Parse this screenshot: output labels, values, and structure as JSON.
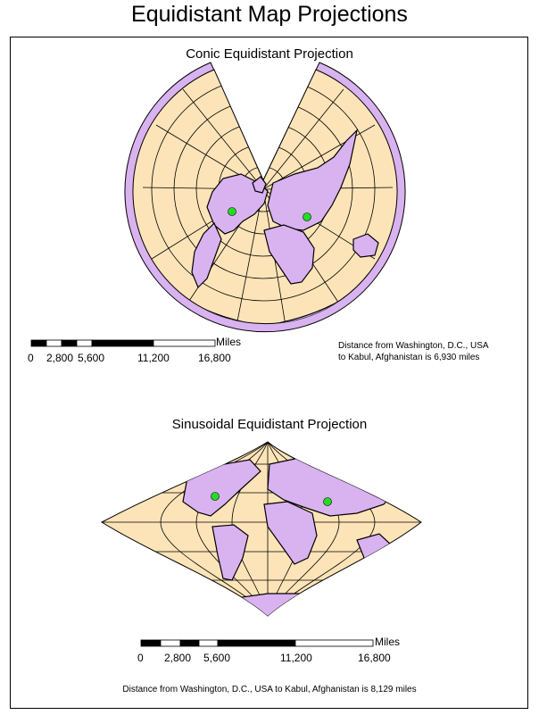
{
  "title": "Equidistant Map Projections",
  "conic": {
    "title": "Conic Equidistant Projection",
    "scale": {
      "unit": "Miles",
      "ticks": [
        "0",
        "2,800",
        "5,600",
        "11,200",
        "16,800"
      ]
    },
    "note_line1": "Distance from Washington, D.C., USA",
    "note_line2": "to Kabul, Afghanistan is 6,930 miles"
  },
  "sinusoidal": {
    "title": "Sinusoidal Equidistant Projection",
    "scale": {
      "unit": "Miles",
      "ticks": [
        "0",
        "2,800",
        "5,600",
        "11,200",
        "16,800"
      ]
    },
    "note": "Distance from Washington, D.C., USA to Kabul, Afghanistan is 8,129 miles"
  },
  "colors": {
    "ocean": "#fde4b8",
    "land": "#d9b2f0",
    "outline": "#000000",
    "point": "#22dd22"
  },
  "points": [
    "Washington, D.C.",
    "Kabul"
  ]
}
